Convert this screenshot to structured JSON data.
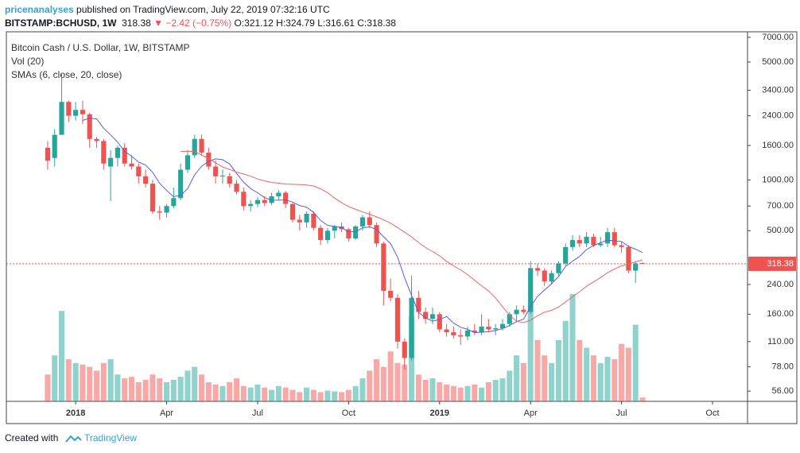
{
  "header": {
    "author": "pricenanalyses",
    "published": " published on TradingView.com, July 22, 2019 07:32:16 UTC",
    "symbol": "BITSTAMP:BCHUSD, 1W",
    "price": "318.38",
    "change": "▼ −2.42 (−0.75%)",
    "open": "O:321.12",
    "high": "H:324.79",
    "low": "L:316.61",
    "close": "C:318.38"
  },
  "chart_data": {
    "type": "candlestick",
    "title": "Bitcoin Cash / U.S. Dollar, 1W, BITSTAMP",
    "volume_label": "Vol (20)",
    "sma_label": "SMAs (6, close, 20, close)",
    "sma_periods": [
      6,
      20
    ],
    "sma_colors": [
      "#5c5ce0",
      "#ef6461"
    ],
    "up_color": "#26a69a",
    "down_color": "#ef5350",
    "log_scale": true,
    "ohlc": [
      [
        1550,
        1700,
        1150,
        1300
      ],
      [
        1350,
        2000,
        1200,
        1850
      ],
      [
        1850,
        4300,
        1850,
        2900
      ],
      [
        2900,
        2950,
        2200,
        2400
      ],
      [
        2400,
        2900,
        2250,
        2600
      ],
      [
        2600,
        2950,
        2150,
        2450
      ],
      [
        2450,
        2500,
        1550,
        1750
      ],
      [
        1750,
        1800,
        1550,
        1700
      ],
      [
        1700,
        1750,
        1150,
        1250
      ],
      [
        1200,
        1500,
        750,
        1350
      ],
      [
        1350,
        1600,
        1200,
        1550
      ],
      [
        1550,
        1650,
        1200,
        1250
      ],
      [
        1250,
        1400,
        1150,
        1200
      ],
      [
        1200,
        1250,
        950,
        1050
      ],
      [
        1050,
        1150,
        900,
        950
      ],
      [
        950,
        1000,
        630,
        650
      ],
      [
        650,
        700,
        580,
        640
      ],
      [
        640,
        720,
        600,
        700
      ],
      [
        700,
        900,
        680,
        780
      ],
      [
        780,
        1250,
        760,
        1150
      ],
      [
        1150,
        1500,
        1100,
        1400
      ],
      [
        1400,
        1850,
        1350,
        1750
      ],
      [
        1750,
        1850,
        1400,
        1450
      ],
      [
        1450,
        1550,
        1150,
        1200
      ],
      [
        1200,
        1300,
        950,
        1050
      ],
      [
        1050,
        1150,
        950,
        1060
      ],
      [
        1050,
        1100,
        900,
        950
      ],
      [
        950,
        1000,
        820,
        850
      ],
      [
        850,
        900,
        660,
        700
      ],
      [
        700,
        760,
        650,
        720
      ],
      [
        720,
        790,
        690,
        760
      ],
      [
        760,
        800,
        700,
        730
      ],
      [
        730,
        840,
        710,
        800
      ],
      [
        800,
        870,
        760,
        840
      ],
      [
        840,
        860,
        680,
        720
      ],
      [
        720,
        730,
        560,
        580
      ],
      [
        580,
        620,
        500,
        560
      ],
      [
        560,
        650,
        520,
        630
      ],
      [
        630,
        650,
        500,
        520
      ],
      [
        520,
        540,
        410,
        440
      ],
      [
        440,
        520,
        420,
        500
      ],
      [
        500,
        540,
        450,
        530
      ],
      [
        530,
        560,
        490,
        510
      ],
      [
        510,
        520,
        430,
        450
      ],
      [
        450,
        540,
        440,
        530
      ],
      [
        530,
        620,
        500,
        600
      ],
      [
        600,
        650,
        520,
        540
      ],
      [
        540,
        560,
        400,
        420
      ],
      [
        420,
        430,
        180,
        220
      ],
      [
        220,
        260,
        190,
        200
      ],
      [
        200,
        210,
        100,
        110
      ],
      [
        110,
        115,
        75,
        88
      ],
      [
        88,
        270,
        85,
        200
      ],
      [
        200,
        220,
        150,
        165
      ],
      [
        165,
        175,
        140,
        150
      ],
      [
        150,
        175,
        140,
        160
      ],
      [
        160,
        165,
        125,
        130
      ],
      [
        130,
        140,
        118,
        125
      ],
      [
        125,
        135,
        115,
        120
      ],
      [
        120,
        130,
        105,
        118
      ],
      [
        118,
        135,
        112,
        128
      ],
      [
        128,
        140,
        120,
        125
      ],
      [
        125,
        160,
        120,
        135
      ],
      [
        135,
        150,
        125,
        130
      ],
      [
        130,
        140,
        120,
        132
      ],
      [
        132,
        150,
        128,
        140
      ],
      [
        140,
        165,
        135,
        160
      ],
      [
        160,
        180,
        145,
        170
      ],
      [
        170,
        180,
        160,
        165
      ],
      [
        165,
        330,
        160,
        300
      ],
      [
        300,
        320,
        270,
        290
      ],
      [
        290,
        300,
        235,
        250
      ],
      [
        250,
        290,
        240,
        280
      ],
      [
        280,
        330,
        270,
        320
      ],
      [
        320,
        420,
        310,
        400
      ],
      [
        400,
        470,
        380,
        440
      ],
      [
        440,
        470,
        400,
        420
      ],
      [
        420,
        490,
        400,
        460
      ],
      [
        460,
        480,
        400,
        410
      ],
      [
        410,
        460,
        400,
        420
      ],
      [
        420,
        520,
        400,
        490
      ],
      [
        490,
        520,
        400,
        410
      ],
      [
        410,
        430,
        370,
        400
      ],
      [
        400,
        410,
        280,
        290
      ],
      [
        290,
        330,
        245,
        320
      ],
      [
        321.12,
        324.79,
        316.61,
        318.38
      ]
    ],
    "volume": [
      35,
      60,
      118,
      55,
      50,
      48,
      45,
      40,
      50,
      55,
      35,
      30,
      32,
      25,
      28,
      35,
      30,
      25,
      28,
      32,
      40,
      45,
      35,
      25,
      22,
      20,
      25,
      30,
      20,
      18,
      22,
      18,
      15,
      20,
      18,
      15,
      12,
      18,
      15,
      12,
      14,
      13,
      12,
      15,
      20,
      30,
      40,
      55,
      45,
      65,
      50,
      48,
      110,
      35,
      28,
      30,
      25,
      22,
      20,
      18,
      20,
      22,
      18,
      25,
      28,
      30,
      40,
      60,
      50,
      130,
      80,
      60,
      50,
      80,
      105,
      140,
      80,
      70,
      60,
      50,
      58,
      55,
      75,
      70,
      100,
      5
    ],
    "last_price": {
      "value": 318.38,
      "label": "318.38"
    },
    "ylim": [
      48.7,
      7550
    ],
    "yticks": [
      {
        "value": 7000,
        "label": "7000.00"
      },
      {
        "value": 5000,
        "label": "5000.00"
      },
      {
        "value": 3400,
        "label": "3400.00"
      },
      {
        "value": 2400,
        "label": "2400.00"
      },
      {
        "value": 1600,
        "label": "1600.00"
      },
      {
        "value": 1000,
        "label": "1000.00"
      },
      {
        "value": 700,
        "label": "700.00"
      },
      {
        "value": 500,
        "label": "500.00"
      },
      {
        "value": 240,
        "label": "240.00"
      },
      {
        "value": 160,
        "label": "160.00"
      },
      {
        "value": 110,
        "label": "110.00"
      },
      {
        "value": 78,
        "label": "78.00"
      },
      {
        "value": 56,
        "label": "56.00"
      }
    ],
    "xlim": [
      -5.9,
      100
    ],
    "xticks": [
      {
        "value": 4,
        "label": "2018"
      },
      {
        "value": 17,
        "label": "Apr"
      },
      {
        "value": 30,
        "label": "Jul"
      },
      {
        "value": 43,
        "label": "Oct"
      },
      {
        "value": 56,
        "label": "2019"
      },
      {
        "value": 69,
        "label": "Apr"
      },
      {
        "value": 82,
        "label": "Jul"
      },
      {
        "value": 95,
        "label": "Oct"
      }
    ]
  },
  "footer": {
    "created": "Created with",
    "brand": "TradingView"
  }
}
